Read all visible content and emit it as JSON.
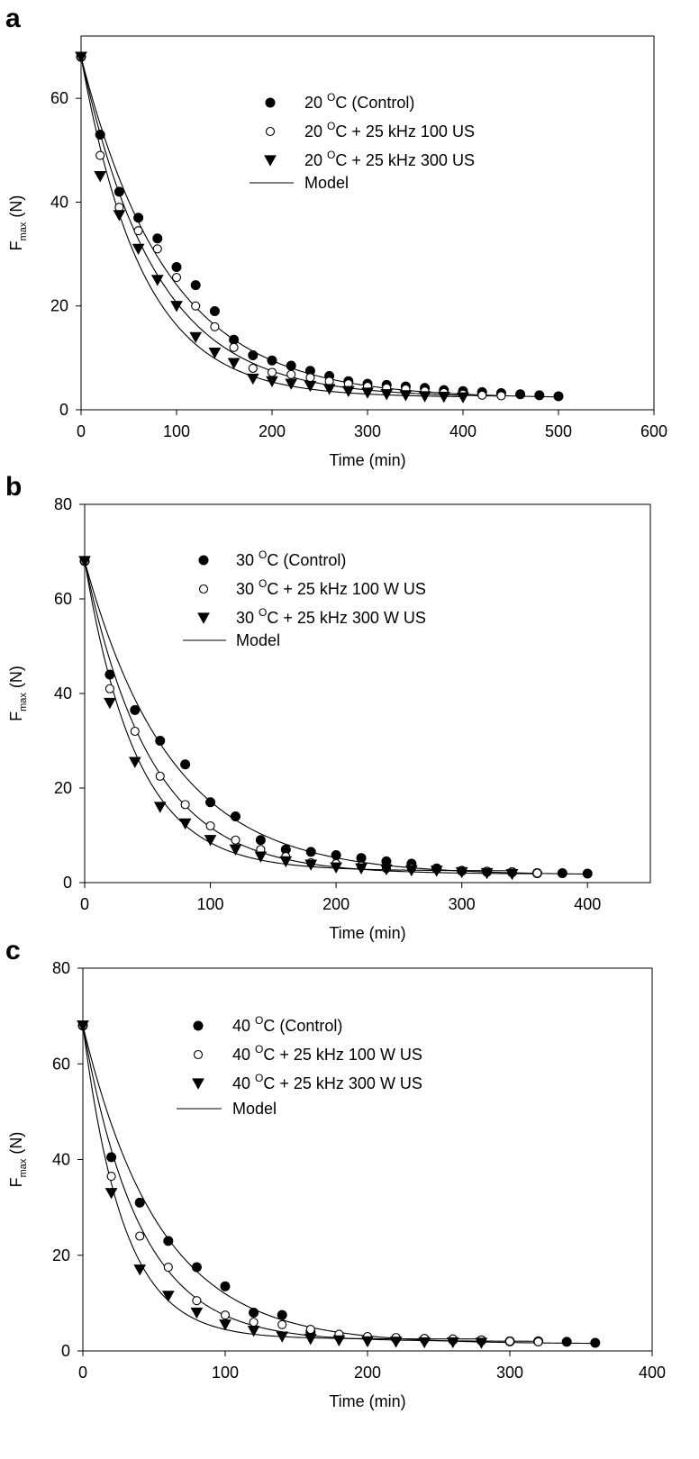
{
  "chart_data": [
    {
      "panel": "a",
      "type": "scatter",
      "xlabel": "Time (min)",
      "ylabel": "F",
      "ylabel_sub": "max",
      "ylabel_unit": "(N)",
      "xlim": [
        0,
        600
      ],
      "ylim": [
        0,
        72
      ],
      "xticks": [
        0,
        100,
        200,
        300,
        400,
        500,
        600
      ],
      "yticks": [
        0,
        20,
        40,
        60
      ],
      "legend_position": "top-center",
      "model_label": "Model",
      "series": [
        {
          "name": "20 ^OC (Control)",
          "legend": {
            "num": "20",
            "sup": "O",
            "rest": "C (Control)"
          },
          "marker": "filled-circle",
          "x": [
            0,
            20,
            40,
            60,
            80,
            100,
            120,
            140,
            160,
            180,
            200,
            220,
            240,
            260,
            280,
            300,
            320,
            340,
            360,
            380,
            400,
            420,
            440,
            460,
            480,
            500
          ],
          "y": [
            68,
            53,
            42,
            37,
            33,
            27.5,
            24,
            19,
            13.5,
            10.5,
            9.5,
            8.5,
            7.5,
            6.5,
            5.5,
            5,
            4.8,
            4.5,
            4.2,
            3.8,
            3.6,
            3.4,
            3.2,
            3,
            2.8,
            2.6
          ],
          "model": {
            "y0": 68,
            "yinf": 2.2,
            "k": 0.011,
            "xmax": 500
          }
        },
        {
          "name": "20 ^OC + 25 kHz 100 US",
          "legend": {
            "num": "20",
            "sup": "O",
            "rest": "C + 25 kHz 100 US"
          },
          "marker": "open-circle",
          "x": [
            0,
            20,
            40,
            60,
            80,
            100,
            120,
            140,
            160,
            180,
            200,
            220,
            240,
            260,
            280,
            300,
            320,
            340,
            360,
            380,
            400,
            420,
            440
          ],
          "y": [
            68,
            49,
            39,
            34.5,
            31,
            25.5,
            20,
            16,
            12,
            8,
            7.2,
            6.8,
            6.2,
            5.5,
            5,
            4.5,
            4.2,
            4,
            3.6,
            3.3,
            3,
            2.8,
            2.7
          ],
          "model": {
            "y0": 68,
            "yinf": 2.4,
            "k": 0.0128,
            "xmax": 440
          }
        },
        {
          "name": "20 ^OC + 25 kHz 300 US",
          "legend": {
            "num": "20",
            "sup": "O",
            "rest": "C + 25 kHz 300 US"
          },
          "marker": "filled-triangle-down",
          "x": [
            0,
            20,
            40,
            60,
            80,
            100,
            120,
            140,
            160,
            180,
            200,
            220,
            240,
            260,
            280,
            300,
            320,
            340,
            360,
            380,
            400
          ],
          "y": [
            68,
            45,
            37.5,
            31,
            25,
            20,
            14,
            11,
            9,
            6,
            5.5,
            5,
            4.6,
            4,
            3.6,
            3.3,
            3,
            2.8,
            2.6,
            2.5,
            2.4
          ],
          "model": {
            "y0": 68,
            "yinf": 2.4,
            "k": 0.0155,
            "xmax": 400
          }
        }
      ]
    },
    {
      "panel": "b",
      "type": "scatter",
      "xlabel": "Time (min)",
      "ylabel": "F",
      "ylabel_sub": "max",
      "ylabel_unit": "(N)",
      "xlim": [
        0,
        450
      ],
      "ylim": [
        0,
        80
      ],
      "xticks": [
        0,
        100,
        200,
        300,
        400
      ],
      "yticks": [
        0,
        20,
        40,
        60,
        80
      ],
      "legend_position": "top-center",
      "model_label": "Model",
      "series": [
        {
          "name": "30 ^OC (Control)",
          "legend": {
            "num": "30",
            "sup": "O",
            "rest": "C (Control)"
          },
          "marker": "filled-circle",
          "x": [
            0,
            20,
            40,
            60,
            80,
            100,
            120,
            140,
            160,
            180,
            200,
            220,
            240,
            260,
            280,
            300,
            320,
            340,
            360,
            380,
            400
          ],
          "y": [
            68,
            44,
            36.5,
            30,
            25,
            17,
            14,
            9,
            7,
            6.5,
            5.8,
            5.2,
            4.5,
            4,
            3,
            2.5,
            2.3,
            2.2,
            2,
            2,
            1.9
          ],
          "model": {
            "y0": 68,
            "yinf": 1.6,
            "k": 0.0145,
            "xmax": 400
          }
        },
        {
          "name": "30 ^OC + 25 kHz 100 W US",
          "legend": {
            "num": "30",
            "sup": "O",
            "rest": "C + 25 kHz 100 W US"
          },
          "marker": "open-circle",
          "x": [
            0,
            20,
            40,
            60,
            80,
            100,
            120,
            140,
            160,
            180,
            200,
            220,
            240,
            260,
            280,
            300,
            320,
            340,
            360
          ],
          "y": [
            68,
            41,
            32,
            22.5,
            16.5,
            12,
            9,
            7,
            5.5,
            4.2,
            4,
            3.5,
            3,
            3,
            2.8,
            2.5,
            2.4,
            2.2,
            2
          ],
          "model": {
            "y0": 68,
            "yinf": 1.8,
            "k": 0.019,
            "xmax": 360
          }
        },
        {
          "name": "30 ^OC + 25 kHz 300 W US",
          "legend": {
            "num": "30",
            "sup": "O",
            "rest": "C + 25 kHz 300 W US"
          },
          "marker": "filled-triangle-down",
          "x": [
            0,
            20,
            40,
            60,
            80,
            100,
            120,
            140,
            160,
            180,
            200,
            220,
            240,
            260,
            280,
            300,
            320,
            340
          ],
          "y": [
            68,
            38,
            25.5,
            16,
            12.5,
            9,
            7,
            5.5,
            4.5,
            3.8,
            3.2,
            3,
            2.8,
            2.6,
            2.5,
            2.2,
            2,
            1.8
          ],
          "model": {
            "y0": 68,
            "yinf": 2.5,
            "k": 0.024,
            "xmax": 340
          }
        }
      ]
    },
    {
      "panel": "c",
      "type": "scatter",
      "xlabel": "Time (min)",
      "ylabel": "F",
      "ylabel_sub": "max",
      "ylabel_unit": "(N)",
      "xlim": [
        0,
        400
      ],
      "ylim": [
        0,
        80
      ],
      "xticks": [
        0,
        100,
        200,
        300,
        400
      ],
      "yticks": [
        0,
        20,
        40,
        60,
        80
      ],
      "legend_position": "top-center",
      "model_label": "Model",
      "series": [
        {
          "name": "40 ^OC (Control)",
          "legend": {
            "num": "40",
            "sup": "O",
            "rest": "C (Control)"
          },
          "marker": "filled-circle",
          "x": [
            0,
            20,
            40,
            60,
            80,
            100,
            120,
            140,
            160,
            180,
            200,
            220,
            240,
            260,
            280,
            300,
            320,
            340,
            360
          ],
          "y": [
            68,
            40.5,
            31,
            23,
            17.5,
            13.5,
            8,
            7.5,
            4,
            3,
            2.8,
            2.6,
            2.5,
            2.3,
            2.2,
            2,
            2,
            1.9,
            1.7
          ],
          "model": {
            "y0": 68,
            "yinf": 1.5,
            "k": 0.0185,
            "xmax": 360
          }
        },
        {
          "name": "40 ^OC + 25 kHz 100 W US",
          "legend": {
            "num": "40",
            "sup": "O",
            "rest": "C + 25 kHz 100 W US"
          },
          "marker": "open-circle",
          "x": [
            0,
            20,
            40,
            60,
            80,
            100,
            120,
            140,
            160,
            180,
            200,
            220,
            240,
            260,
            280,
            300,
            320
          ],
          "y": [
            68,
            36.5,
            24,
            17.5,
            10.5,
            7.5,
            6,
            5.5,
            4.5,
            3.5,
            3,
            2.8,
            2.6,
            2.5,
            2.3,
            2,
            1.9
          ],
          "model": {
            "y0": 68,
            "yinf": 2.0,
            "k": 0.025,
            "xmax": 320
          }
        },
        {
          "name": "40 ^OC + 25 kHz 300 W US",
          "legend": {
            "num": "40",
            "sup": "O",
            "rest": "C + 25 kHz 300 W US"
          },
          "marker": "filled-triangle-down",
          "x": [
            0,
            20,
            40,
            60,
            80,
            100,
            120,
            140,
            160,
            180,
            200,
            220,
            240,
            260,
            280
          ],
          "y": [
            68,
            33,
            17,
            11.5,
            8,
            5.5,
            4.2,
            3,
            2.5,
            2.2,
            2,
            1.9,
            1.8,
            1.8,
            1.7
          ],
          "model": {
            "y0": 68,
            "yinf": 2.5,
            "k": 0.035,
            "xmax": 280
          }
        }
      ]
    }
  ]
}
